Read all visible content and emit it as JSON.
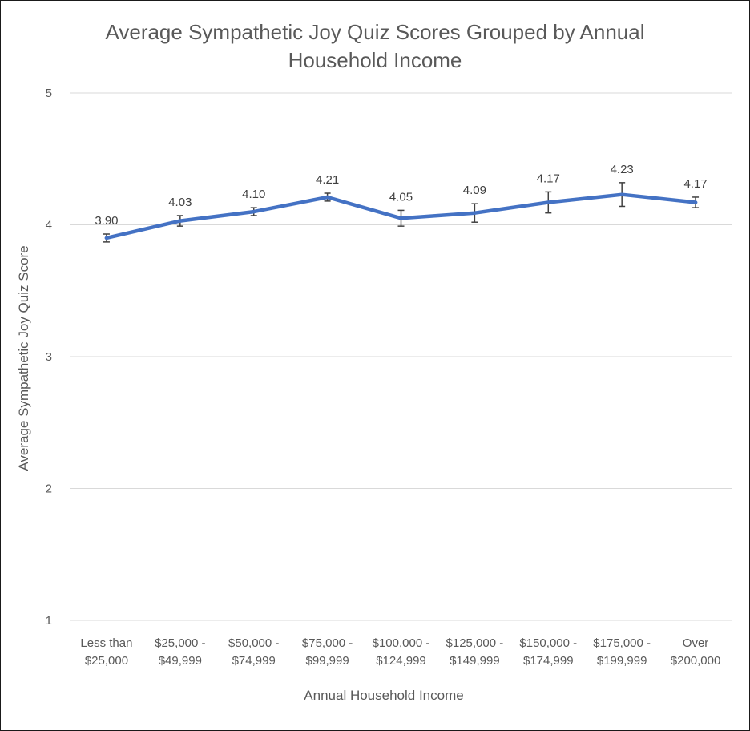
{
  "chart_data": {
    "type": "line",
    "title_lines": [
      "Average Sympathetic Joy Quiz Scores Grouped by Annual",
      "Household Income"
    ],
    "xlabel": "Annual Household Income",
    "ylabel": "Average Sympathetic Joy Quiz Score",
    "ylim": [
      1,
      5
    ],
    "yticks": [
      1,
      2,
      3,
      4,
      5
    ],
    "grid": true,
    "categories": [
      [
        "Less than",
        "$25,000"
      ],
      [
        "$25,000 -",
        "$49,999"
      ],
      [
        "$50,000 -",
        "$74,999"
      ],
      [
        "$75,000 -",
        "$99,999"
      ],
      [
        "$100,000 -",
        "$124,999"
      ],
      [
        "$125,000 -",
        "$149,999"
      ],
      [
        "$150,000 -",
        "$174,999"
      ],
      [
        "$175,000 -",
        "$199,999"
      ],
      [
        "Over",
        "$200,000"
      ]
    ],
    "values": [
      3.9,
      4.03,
      4.1,
      4.21,
      4.05,
      4.09,
      4.17,
      4.23,
      4.17
    ],
    "data_labels": [
      "3.90",
      "4.03",
      "4.10",
      "4.21",
      "4.05",
      "4.09",
      "4.17",
      "4.23",
      "4.17"
    ],
    "error": [
      0.03,
      0.04,
      0.03,
      0.03,
      0.06,
      0.07,
      0.08,
      0.09,
      0.04
    ],
    "series_color": "#4472C4",
    "error_color": "#404040",
    "grid_color": "#d9d9d9"
  }
}
